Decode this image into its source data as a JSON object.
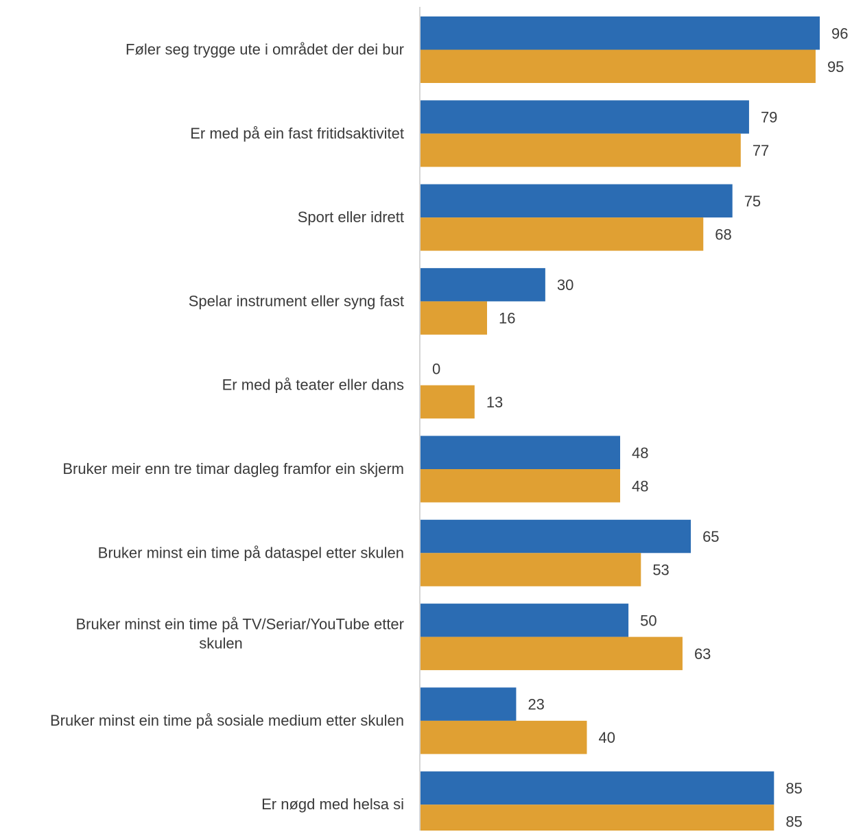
{
  "chart_data": {
    "type": "bar",
    "orientation": "horizontal",
    "categories": [
      [
        "Føler seg trygge ute i området der dei bur"
      ],
      [
        "Er med på ein fast fritidsaktivitet"
      ],
      [
        "Sport eller idrett"
      ],
      [
        "Spelar instrument eller syng fast"
      ],
      [
        "Er med på teater eller dans"
      ],
      [
        "Bruker meir enn tre timar dagleg framfor ein skjerm"
      ],
      [
        "Bruker minst ein time på dataspel etter skulen"
      ],
      [
        "Bruker minst ein time på TV/Seriar/YouTube etter",
        "skulen"
      ],
      [
        "Bruker minst ein time på sosiale medium etter skulen"
      ],
      [
        "Er nøgd med helsa si"
      ]
    ],
    "series": [
      {
        "color": "#2B6CB3",
        "values": [
          96,
          79,
          75,
          30,
          0,
          48,
          65,
          50,
          23,
          85
        ]
      },
      {
        "color": "#E0A033",
        "values": [
          95,
          77,
          68,
          16,
          13,
          48,
          53,
          63,
          40,
          85
        ]
      }
    ],
    "xlim": [
      0,
      96
    ],
    "grid": false,
    "legend": "none"
  }
}
